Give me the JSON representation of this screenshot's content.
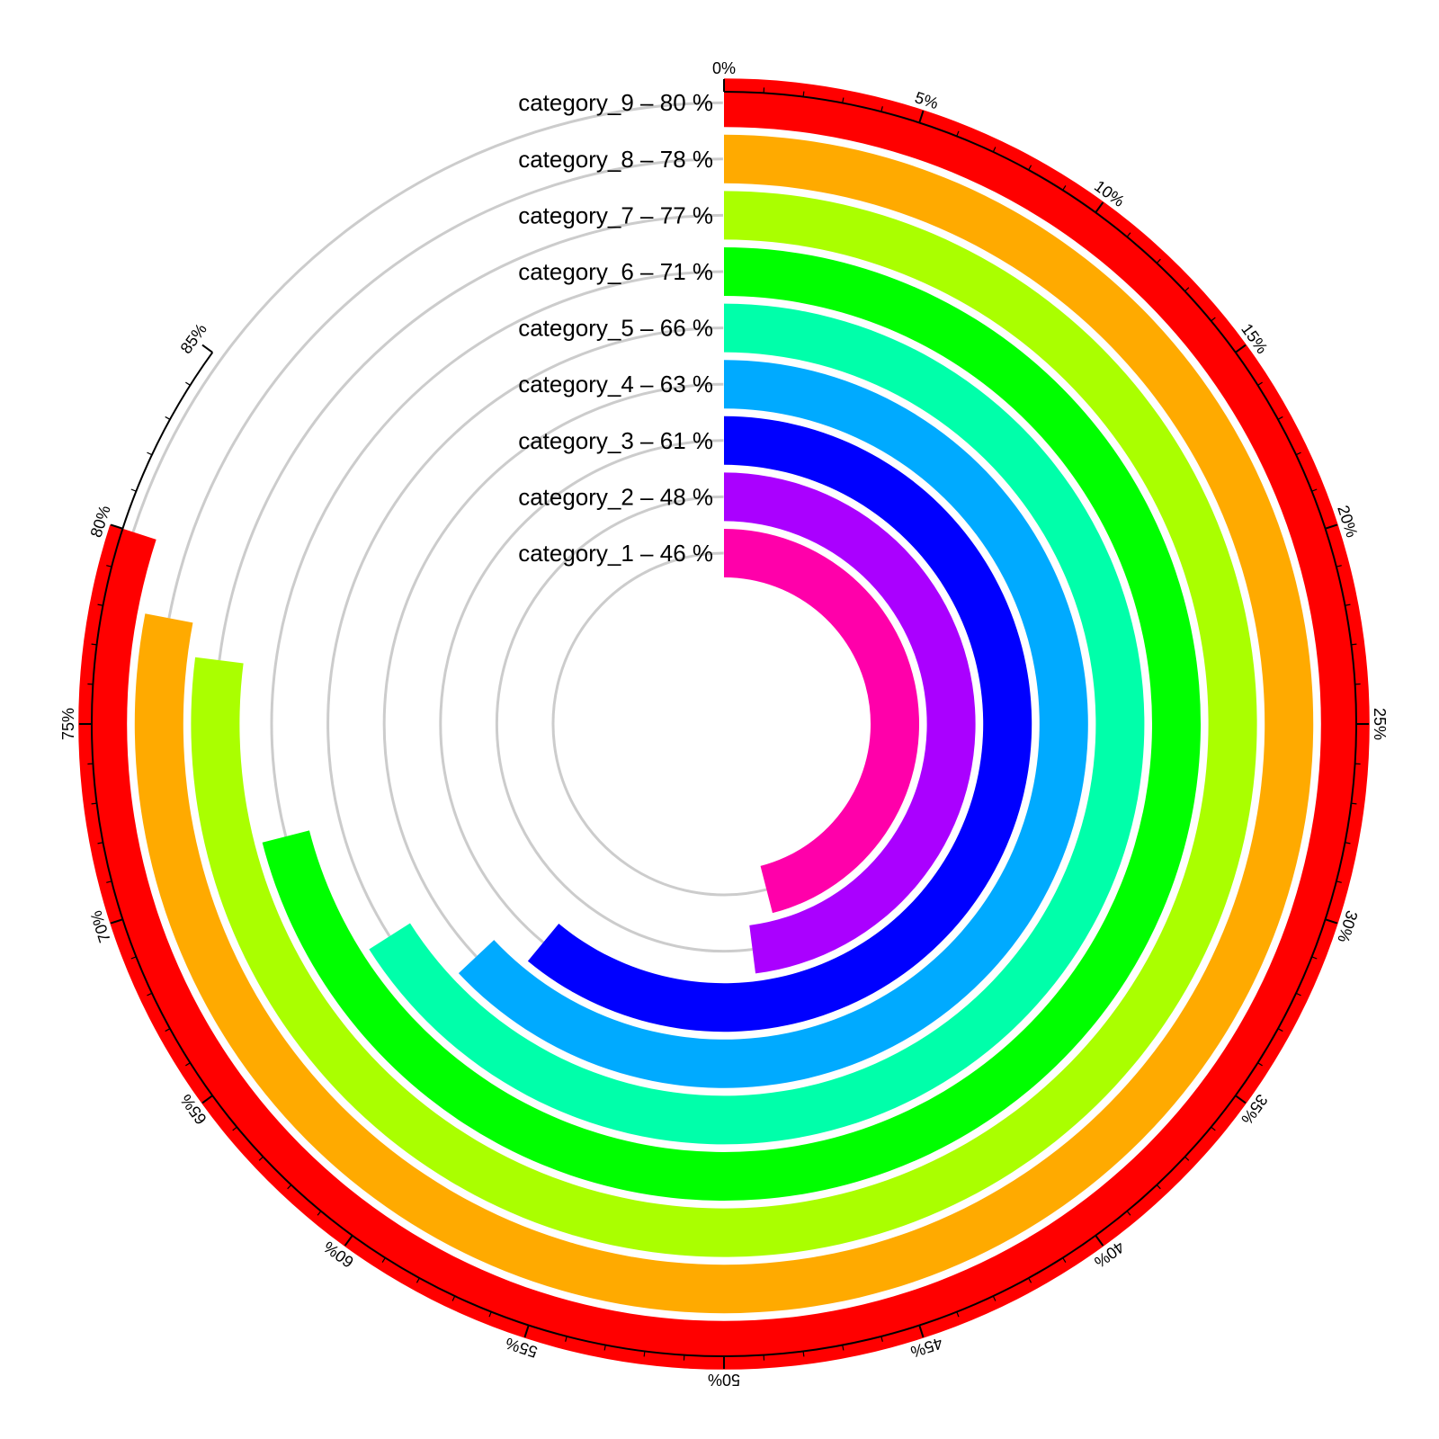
{
  "chart_data": {
    "type": "radial-bar",
    "title": "",
    "axis": {
      "min": 0,
      "max": 85,
      "major_step": 5,
      "minor_step": 1,
      "tick_labels": [
        "0%",
        "5%",
        "10%",
        "15%",
        "20%",
        "25%",
        "30%",
        "35%",
        "40%",
        "45%",
        "50%",
        "55%",
        "60%",
        "65%",
        "70%",
        "75%",
        "80%",
        "85%"
      ]
    },
    "series": [
      {
        "category": "category_1",
        "value": 46,
        "label": "category_1  –  46 %",
        "color": "#ff00aa"
      },
      {
        "category": "category_2",
        "value": 48,
        "label": "category_2  –  48 %",
        "color": "#aa00ff"
      },
      {
        "category": "category_3",
        "value": 61,
        "label": "category_3  –  61 %",
        "color": "#0000ff"
      },
      {
        "category": "category_4",
        "value": 63,
        "label": "category_4  –  63 %",
        "color": "#00aaff"
      },
      {
        "category": "category_5",
        "value": 66,
        "label": "category_5  –  66 %",
        "color": "#00ffaa"
      },
      {
        "category": "category_6",
        "value": 71,
        "label": "category_6  –  71 %",
        "color": "#00ff00"
      },
      {
        "category": "category_7",
        "value": 77,
        "label": "category_7  –  77 %",
        "color": "#aaff00"
      },
      {
        "category": "category_8",
        "value": 78,
        "label": "category_8  –  78 %",
        "color": "#ffaa00"
      },
      {
        "category": "category_9",
        "value": 80,
        "label": "category_9  –  80 %",
        "color": "#ff0000"
      }
    ],
    "track_color": "#cccccc",
    "grid": false,
    "legend": "none"
  }
}
